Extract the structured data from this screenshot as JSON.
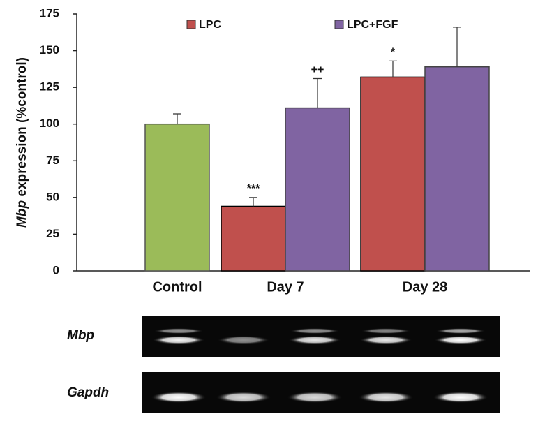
{
  "chart_data": {
    "type": "bar",
    "ylabel": {
      "gene": "Mbp",
      "text": "expression (%control)"
    },
    "categories": [
      "Control",
      "Day 7",
      "Day 28"
    ],
    "control_bar": {
      "value": 100,
      "error": 7,
      "color": "#9bbb59"
    },
    "series": [
      {
        "name": "LPC",
        "color": "#c0504d",
        "values": [
          null,
          44,
          132
        ],
        "errors": [
          null,
          6,
          11
        ],
        "significance": [
          null,
          "***",
          "*"
        ]
      },
      {
        "name": "LPC+FGF",
        "color": "#8064a2",
        "values": [
          null,
          111,
          139
        ],
        "errors": [
          null,
          20,
          27
        ],
        "significance": [
          null,
          "++",
          null
        ]
      }
    ],
    "ylim": [
      0,
      175
    ],
    "yticks": [
      0,
      25,
      50,
      75,
      100,
      125,
      150,
      175
    ],
    "gel": {
      "rows": [
        "Mbp",
        "Gapdh"
      ]
    }
  }
}
